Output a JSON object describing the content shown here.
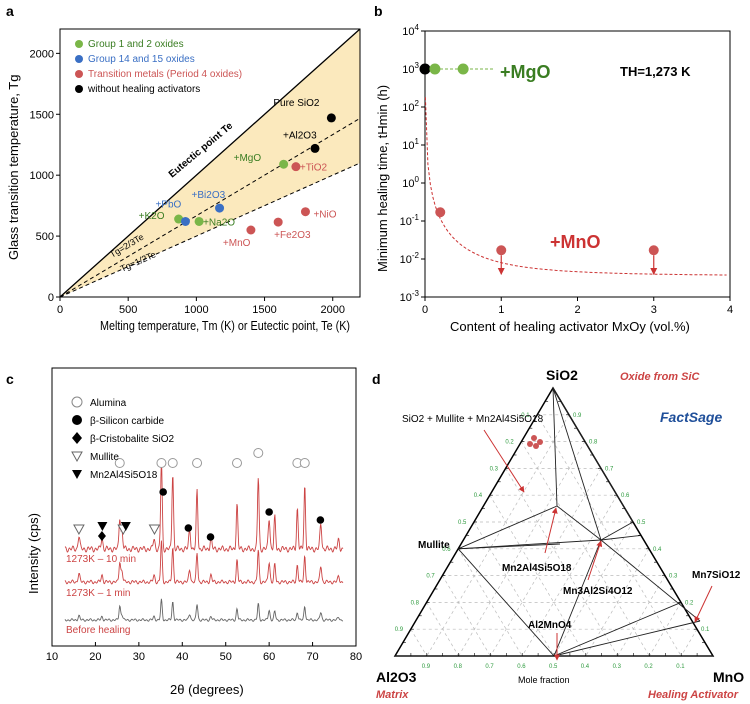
{
  "colors": {
    "group12": "#7ab648",
    "group1415": "#3a6fc4",
    "transition": "#cc5555",
    "nohealing": "#000000",
    "eutectic_fill": "#fbe9bd",
    "red_curve": "#cc3333",
    "xrd_red": "#cc4444",
    "xrd_gray": "#666666",
    "ternary_tick_green": "#2e9a3e"
  },
  "panel_a": {
    "letter": "a",
    "legend": [
      {
        "label": "Group 1 and 2 oxides",
        "color": "#7ab648"
      },
      {
        "label": "Group 14 and 15 oxides",
        "color": "#3a6fc4"
      },
      {
        "label": "Transition metals (Period 4 oxides)",
        "color": "#cc5555"
      },
      {
        "label": "without healing activators",
        "color": "#000000"
      }
    ],
    "line_labels": {
      "eutectic": "Eutectic point Te",
      "two_thirds": "Tg=2/3Te",
      "half": "Tg=1/2Te"
    }
  },
  "panel_b": {
    "letter": "b",
    "th_label": "TH=1,273 K",
    "mgo_label": "+MgO",
    "mno_label": "+MnO"
  },
  "panel_c": {
    "letter": "c",
    "legend": [
      "Alumina",
      "β-Silicon carbide",
      "β-Cristobalite SiO2",
      "Mullite",
      "Mn2Al4Si5O18"
    ],
    "trace_labels": [
      "1273K – 10 min",
      "1273K – 1 min",
      "Before healing"
    ]
  },
  "panel_d": {
    "letter": "d",
    "vertices": {
      "top": "SiO2",
      "left": "Al2O3",
      "right": "MnO"
    },
    "vertex_notes": {
      "top": "Oxide from SiC",
      "left": "Matrix",
      "right": "Healing Activator"
    },
    "phase_labels": [
      "SiO2 + Mullite + Mn2Al4Si5O18",
      "Mullite",
      "Mn2Al4Si5O18",
      "Mn3Al2Si4O12",
      "Mn7SiO12",
      "Al2MnO4"
    ],
    "bottom_label": "Mole fraction",
    "logo": "FactSage",
    "tick_labels": [
      "0.9",
      "0.8",
      "0.7",
      "0.6",
      "0.5",
      "0.4",
      "0.3",
      "0.2",
      "0.1"
    ]
  },
  "chart_data": [
    {
      "type": "scatter",
      "panel": "a",
      "xlabel": "Melting temperature, Tm (K) or Eutectic point, Te (K)",
      "ylabel": "Glass transition temperature, Tg",
      "xlim": [
        0,
        2200
      ],
      "ylim": [
        0,
        2200
      ],
      "xticks": [
        0,
        500,
        1000,
        1500,
        2000
      ],
      "yticks": [
        0,
        500,
        1000,
        1500,
        2000
      ],
      "lines": [
        {
          "label": "Eutectic point Te",
          "slope": 1.0
        },
        {
          "label": "Tg=2/3Te",
          "slope": 0.6667
        },
        {
          "label": "Tg=1/2Te",
          "slope": 0.5
        }
      ],
      "series": [
        {
          "name": "Group 1 and 2 oxides",
          "points": [
            {
              "label": "+MgO",
              "x": 1640,
              "y": 1090
            },
            {
              "label": "+K2O",
              "x": 870,
              "y": 640
            },
            {
              "label": "+Na2O",
              "x": 1020,
              "y": 620
            }
          ]
        },
        {
          "name": "Group 14 and 15 oxides",
          "points": [
            {
              "label": "+Bi2O3",
              "x": 1170,
              "y": 730
            },
            {
              "label": "+PbO",
              "x": 920,
              "y": 620
            }
          ]
        },
        {
          "name": "Transition metals (Period 4 oxides)",
          "points": [
            {
              "label": "+TiO2",
              "x": 1730,
              "y": 1070
            },
            {
              "label": "+NiO",
              "x": 1800,
              "y": 700
            },
            {
              "label": "+Fe2O3",
              "x": 1600,
              "y": 615
            },
            {
              "label": "+MnO",
              "x": 1400,
              "y": 550
            }
          ]
        },
        {
          "name": "without healing activators",
          "points": [
            {
              "label": "Pure SiO2",
              "x": 1990,
              "y": 1470
            },
            {
              "label": "+Al2O3",
              "x": 1870,
              "y": 1220
            }
          ]
        }
      ]
    },
    {
      "type": "scatter",
      "panel": "b",
      "xlabel": "Content of healing activator MxOy (vol.%)",
      "ylabel": "Minimum healing time, tHmin (h)",
      "xlim": [
        0,
        4
      ],
      "ylim_log10": [
        -3,
        4
      ],
      "xticks": [
        0,
        1,
        2,
        3,
        4
      ],
      "yticks": [
        "10-3",
        "10-2",
        "10-1",
        "100",
        "101",
        "102",
        "103",
        "104"
      ],
      "series": [
        {
          "name": "+MgO",
          "points": [
            {
              "x": 0,
              "y": 1000
            },
            {
              "x": 0.13,
              "y": 1000
            },
            {
              "x": 0.5,
              "y": 1000
            }
          ]
        },
        {
          "name": "+MnO",
          "points": [
            {
              "x": 0.2,
              "y": 0.17
            },
            {
              "x": 1.0,
              "y": 0.017
            },
            {
              "x": 3.0,
              "y": 0.017
            }
          ]
        }
      ],
      "annotations": [
        "TH=1,273 K"
      ]
    },
    {
      "type": "line",
      "panel": "c",
      "xlabel": "2θ (degrees)",
      "ylabel": "Intensity (cps)",
      "xlim": [
        10,
        80
      ],
      "xticks": [
        10,
        20,
        30,
        40,
        50,
        60,
        70,
        80
      ],
      "series": [
        {
          "name": "1273K – 10 min"
        },
        {
          "name": "1273K – 1 min"
        },
        {
          "name": "Before healing"
        }
      ],
      "major_peaks_2theta": [
        25.6,
        35.2,
        37.8,
        43.4,
        52.6,
        57.5,
        61.3,
        66.5,
        68.2
      ]
    }
  ]
}
